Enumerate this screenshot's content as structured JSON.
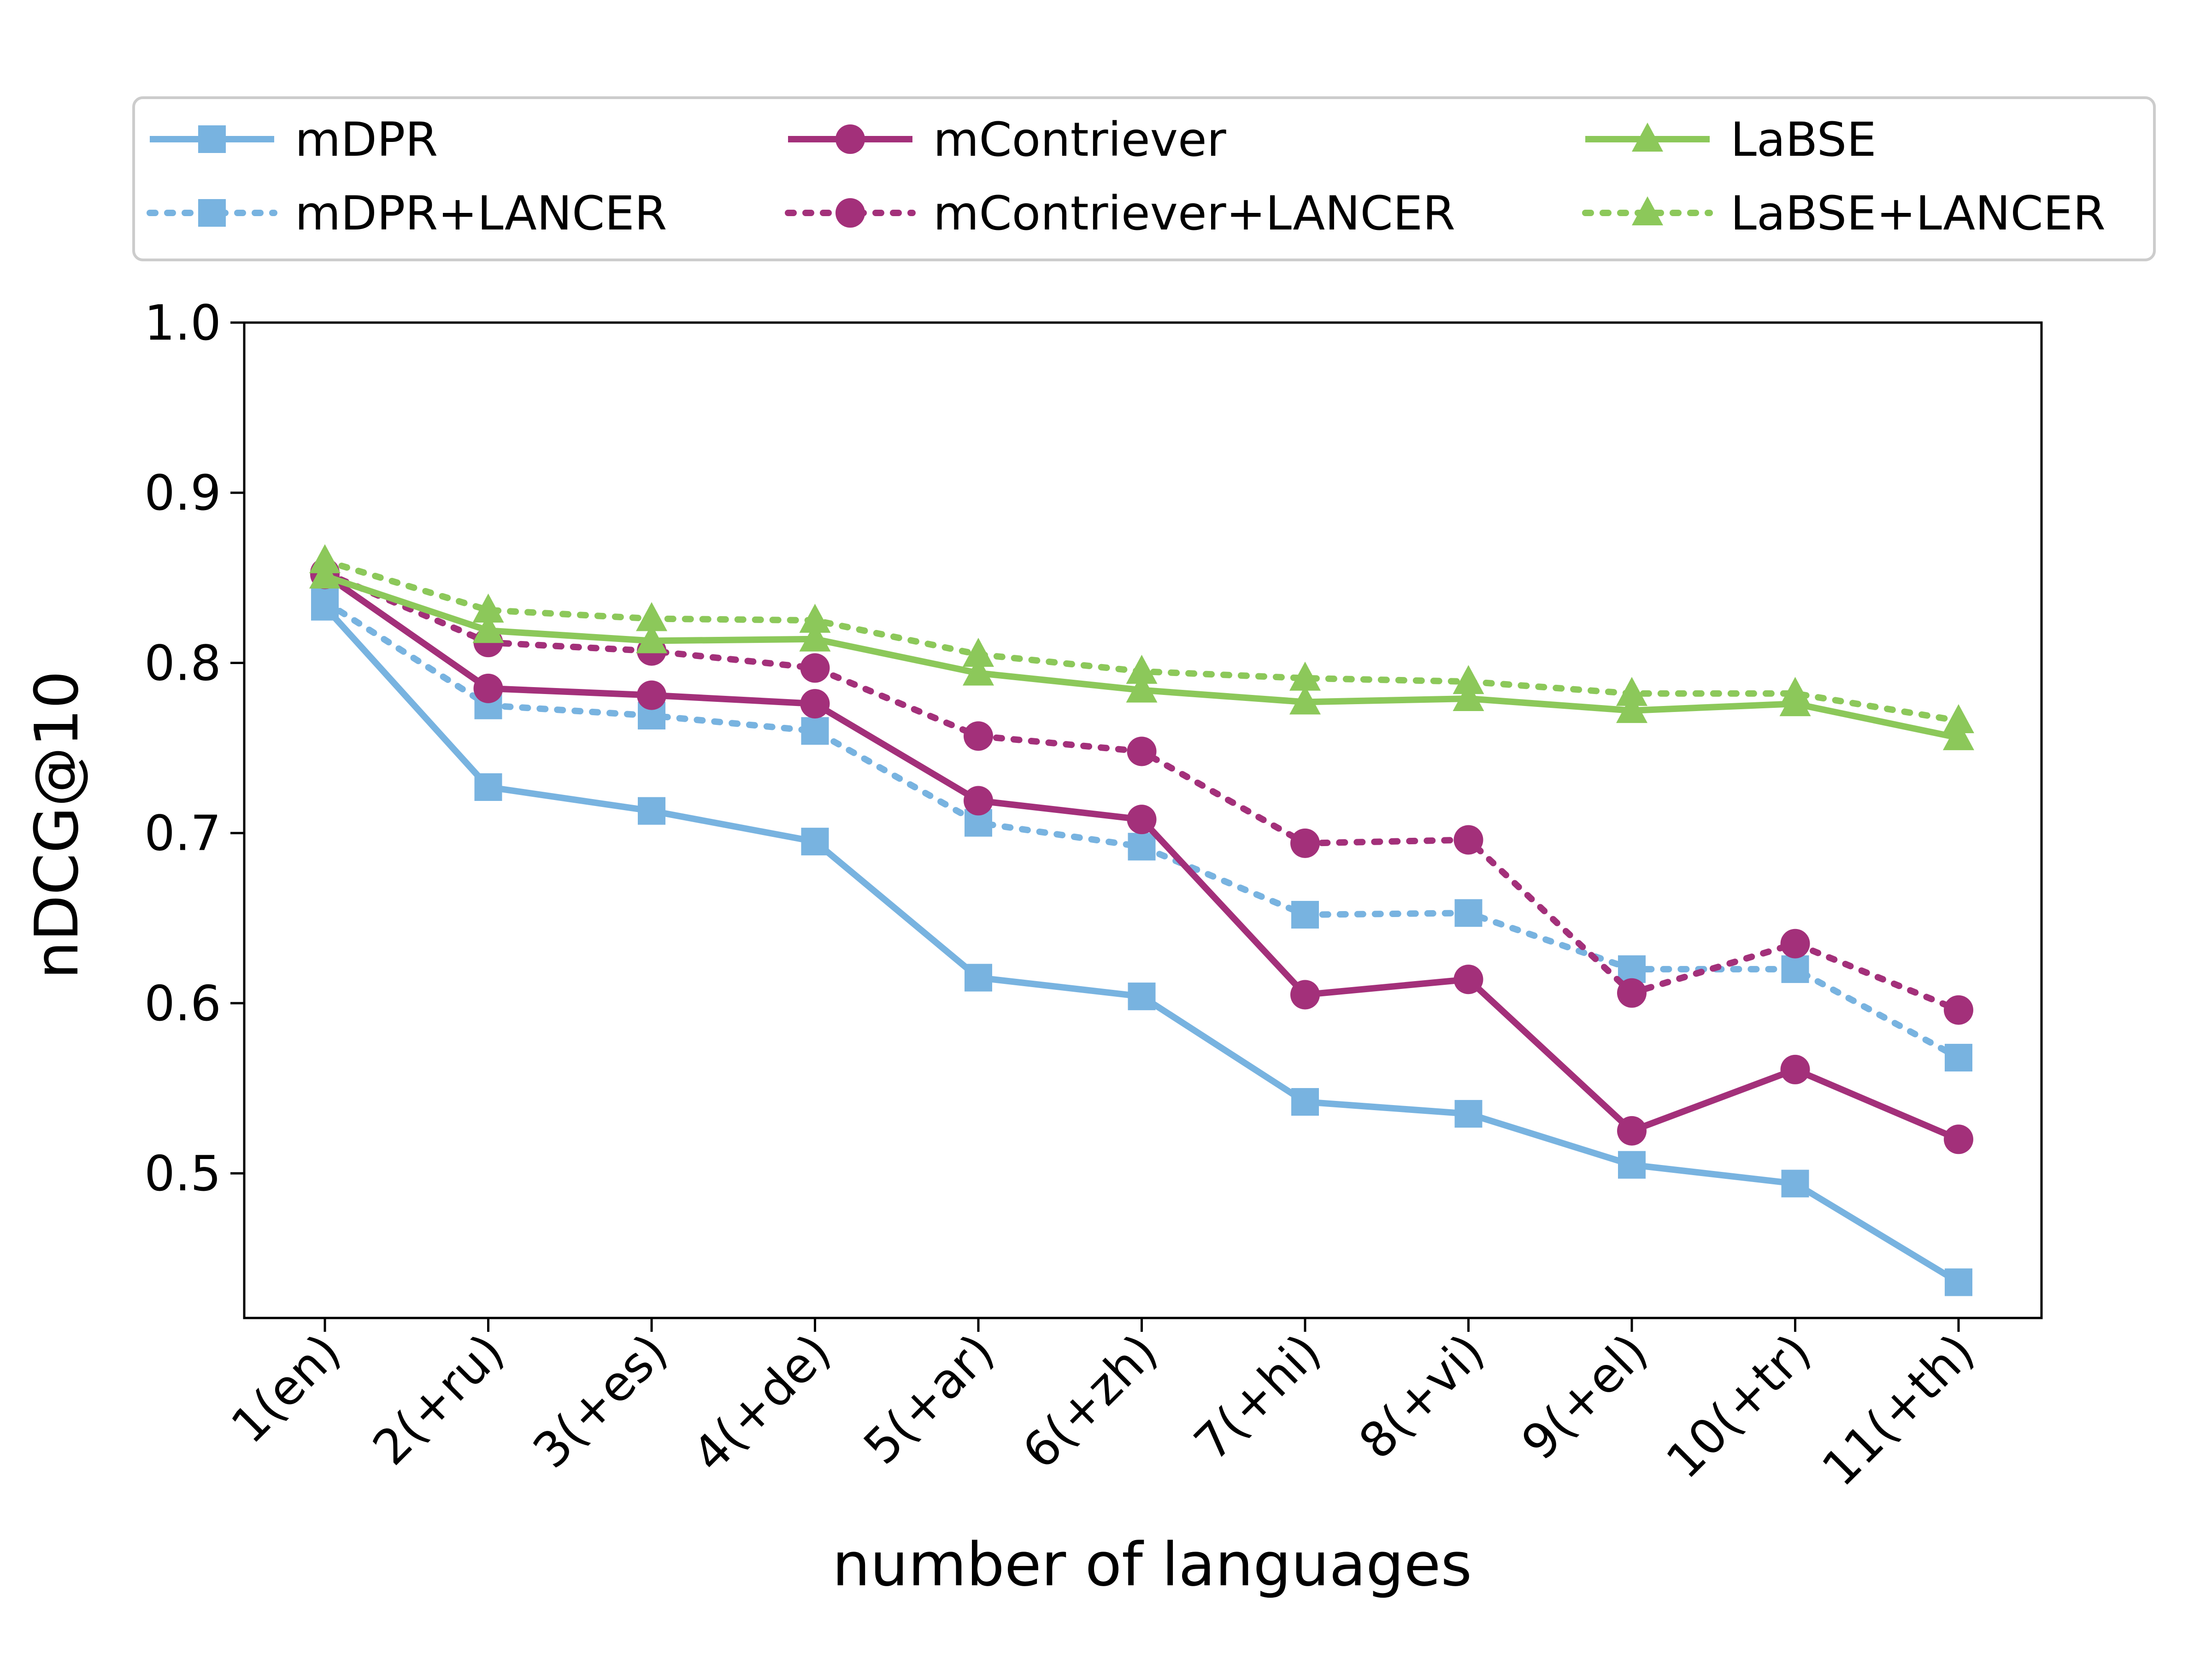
{
  "chart_data": {
    "type": "line",
    "title": "",
    "xlabel": "number of languages",
    "ylabel": "nDCG@10",
    "categories": [
      "1(en)",
      "2(+ru)",
      "3(+es)",
      "4(+de)",
      "5(+ar)",
      "6(+zh)",
      "7(+hi)",
      "8(+vi)",
      "9(+el)",
      "10(+tr)",
      "11(+th)"
    ],
    "ylim": [
      0.415,
      1.0
    ],
    "yticks": [
      "0.5",
      "0.6",
      "0.7",
      "0.8",
      "0.9",
      "1.0"
    ],
    "grid": false,
    "legend_position": "top",
    "series": [
      {
        "name": "mDPR",
        "color": "#78b3e0",
        "linestyle": "solid",
        "marker": "square",
        "values": [
          0.833,
          0.727,
          0.713,
          0.695,
          0.615,
          0.604,
          0.542,
          0.535,
          0.505,
          0.494,
          0.436
        ]
      },
      {
        "name": "mDPR+LANCER",
        "color": "#78b3e0",
        "linestyle": "dotted",
        "marker": "square",
        "values": [
          0.836,
          0.775,
          0.769,
          0.76,
          0.706,
          0.692,
          0.652,
          0.653,
          0.62,
          0.62,
          0.568
        ]
      },
      {
        "name": "mContriever",
        "color": "#a3307a",
        "linestyle": "solid",
        "marker": "circle",
        "values": [
          0.852,
          0.785,
          0.781,
          0.776,
          0.719,
          0.708,
          0.605,
          0.614,
          0.525,
          0.561,
          0.52
        ]
      },
      {
        "name": "mContriever+LANCER",
        "color": "#a3307a",
        "linestyle": "dotted",
        "marker": "circle",
        "values": [
          0.853,
          0.812,
          0.807,
          0.797,
          0.757,
          0.748,
          0.694,
          0.696,
          0.606,
          0.635,
          0.596
        ]
      },
      {
        "name": "LaBSE",
        "color": "#8cc85a",
        "linestyle": "solid",
        "marker": "triangle",
        "values": [
          0.851,
          0.819,
          0.813,
          0.814,
          0.794,
          0.784,
          0.777,
          0.779,
          0.772,
          0.776,
          0.756
        ]
      },
      {
        "name": "LaBSE+LANCER",
        "color": "#8cc85a",
        "linestyle": "dotted",
        "marker": "triangle",
        "values": [
          0.86,
          0.831,
          0.826,
          0.825,
          0.805,
          0.795,
          0.791,
          0.789,
          0.782,
          0.782,
          0.766
        ]
      }
    ]
  }
}
